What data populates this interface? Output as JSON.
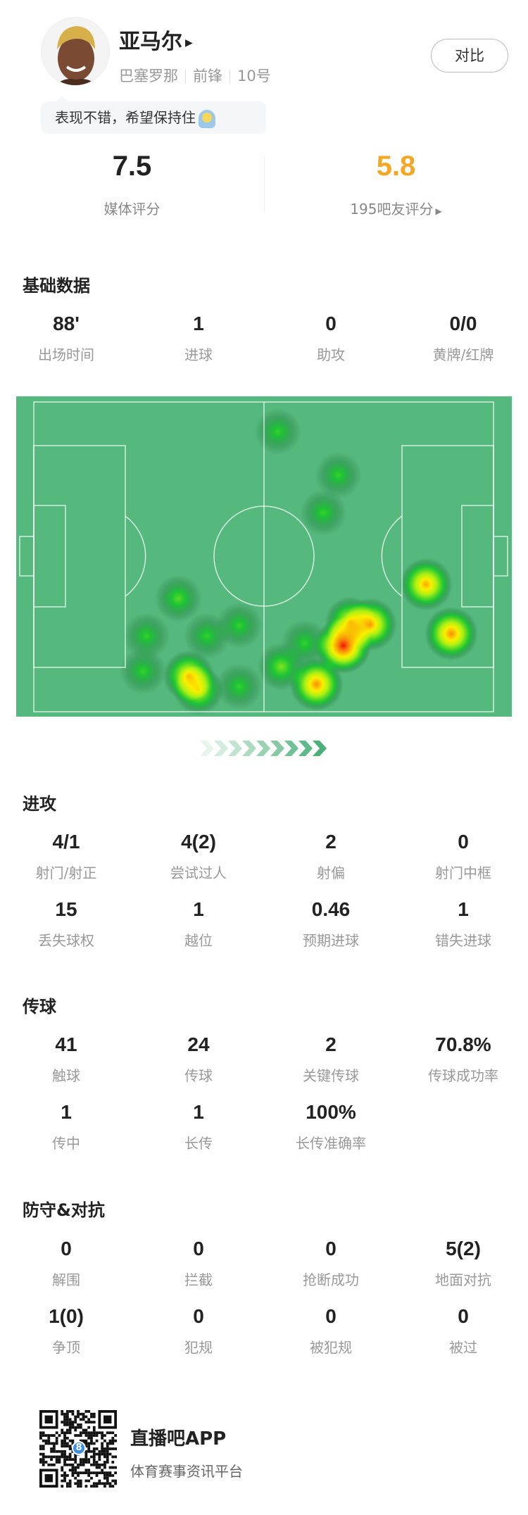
{
  "player": {
    "name": "亚马尔",
    "club": "巴塞罗那",
    "position": "前锋",
    "number": "10号",
    "comment": "表现不错，希望保持住",
    "comment_emoji": "smiling-face-emoji"
  },
  "compare_label": "对比",
  "ratings": {
    "media": {
      "value": "7.5",
      "label": "媒体评分"
    },
    "fans": {
      "value": "5.8",
      "label": "195吧友评分",
      "color": "#f5a623"
    }
  },
  "sections": {
    "basic": {
      "title": "基础数据",
      "rows": [
        [
          {
            "v": "88'",
            "l": "出场时间"
          },
          {
            "v": "1",
            "l": "进球"
          },
          {
            "v": "0",
            "l": "助攻"
          },
          {
            "v": "0/0",
            "l": "黄牌/红牌"
          }
        ]
      ]
    },
    "attack": {
      "title": "进攻",
      "rows": [
        [
          {
            "v": "4/1",
            "l": "射门/射正"
          },
          {
            "v": "4(2)",
            "l": "尝试过人"
          },
          {
            "v": "2",
            "l": "射偏"
          },
          {
            "v": "0",
            "l": "射门中框"
          }
        ],
        [
          {
            "v": "15",
            "l": "丢失球权"
          },
          {
            "v": "1",
            "l": "越位"
          },
          {
            "v": "0.46",
            "l": "预期进球"
          },
          {
            "v": "1",
            "l": "错失进球"
          }
        ]
      ]
    },
    "passing": {
      "title": "传球",
      "rows": [
        [
          {
            "v": "41",
            "l": "触球"
          },
          {
            "v": "24",
            "l": "传球"
          },
          {
            "v": "2",
            "l": "关键传球"
          },
          {
            "v": "70.8%",
            "l": "传球成功率"
          }
        ],
        [
          {
            "v": "1",
            "l": "传中"
          },
          {
            "v": "1",
            "l": "长传"
          },
          {
            "v": "100%",
            "l": "长传准确率"
          }
        ]
      ]
    },
    "defense": {
      "title": "防守&对抗",
      "rows": [
        [
          {
            "v": "0",
            "l": "解围"
          },
          {
            "v": "0",
            "l": "拦截"
          },
          {
            "v": "0",
            "l": "抢断成功"
          },
          {
            "v": "5(2)",
            "l": "地面对抗"
          }
        ],
        [
          {
            "v": "1(0)",
            "l": "争顶"
          },
          {
            "v": "0",
            "l": "犯规"
          },
          {
            "v": "0",
            "l": "被犯规"
          },
          {
            "v": "0",
            "l": "被过"
          }
        ]
      ]
    }
  },
  "heatmap": {
    "pitch_color": "#55b87c",
    "attack_direction": "right",
    "points": [
      [
        52.8,
        11.0,
        0.3
      ],
      [
        65.0,
        24.6,
        0.3
      ],
      [
        62.0,
        36.3,
        0.3
      ],
      [
        32.7,
        63.1,
        0.35
      ],
      [
        45.0,
        71.5,
        0.3
      ],
      [
        38.5,
        74.8,
        0.3
      ],
      [
        26.3,
        74.8,
        0.3
      ],
      [
        25.6,
        85.8,
        0.3
      ],
      [
        34.8,
        87.3,
        0.65
      ],
      [
        36.8,
        91.7,
        0.55
      ],
      [
        45.0,
        90.6,
        0.3
      ],
      [
        53.5,
        84.4,
        0.4
      ],
      [
        58.2,
        77.0,
        0.3
      ],
      [
        60.6,
        89.9,
        0.8
      ],
      [
        66.0,
        77.8,
        1.0
      ],
      [
        67.4,
        70.4,
        0.6
      ],
      [
        71.5,
        71.2,
        0.75
      ],
      [
        82.7,
        58.7,
        0.75
      ],
      [
        87.8,
        74.1,
        0.8
      ]
    ]
  },
  "footer": {
    "app_name": "直播吧APP",
    "tagline": "体育赛事资讯平台",
    "qr_badge": "8"
  }
}
